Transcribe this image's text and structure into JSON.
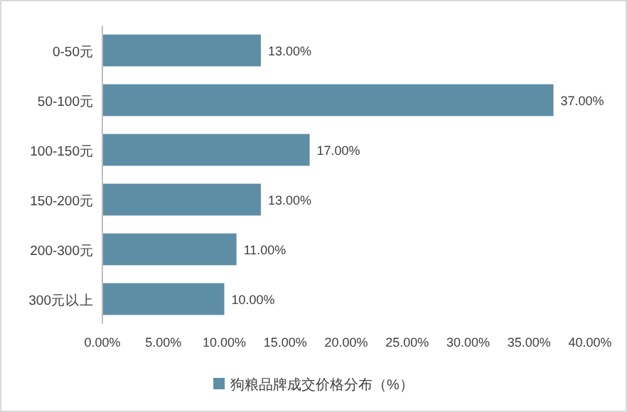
{
  "chart_data": {
    "type": "bar",
    "orientation": "horizontal",
    "categories": [
      "0-50元",
      "50-100元",
      "100-150元",
      "150-200元",
      "200-300元",
      "300元以上"
    ],
    "series": [
      {
        "name": "狗粮品牌成交价格分布（%）",
        "color": "#5e8ea6",
        "values": [
          13,
          37,
          17,
          13,
          11,
          10
        ],
        "value_labels": [
          "13.00%",
          "37.00%",
          "17.00%",
          "13.00%",
          "11.00%",
          "10.00%"
        ]
      }
    ],
    "xlim": [
      0,
      40
    ],
    "xticks": [
      {
        "value": 0,
        "label": "0.00%"
      },
      {
        "value": 5,
        "label": "5.00%"
      },
      {
        "value": 10,
        "label": "10.00%"
      },
      {
        "value": 15,
        "label": "15.00%"
      },
      {
        "value": 20,
        "label": "20.00%"
      },
      {
        "value": 25,
        "label": "25.00%"
      },
      {
        "value": 30,
        "label": "30.00%"
      },
      {
        "value": 35,
        "label": "35.00%"
      },
      {
        "value": 40,
        "label": "40.00%"
      }
    ],
    "legend": "bottom"
  }
}
